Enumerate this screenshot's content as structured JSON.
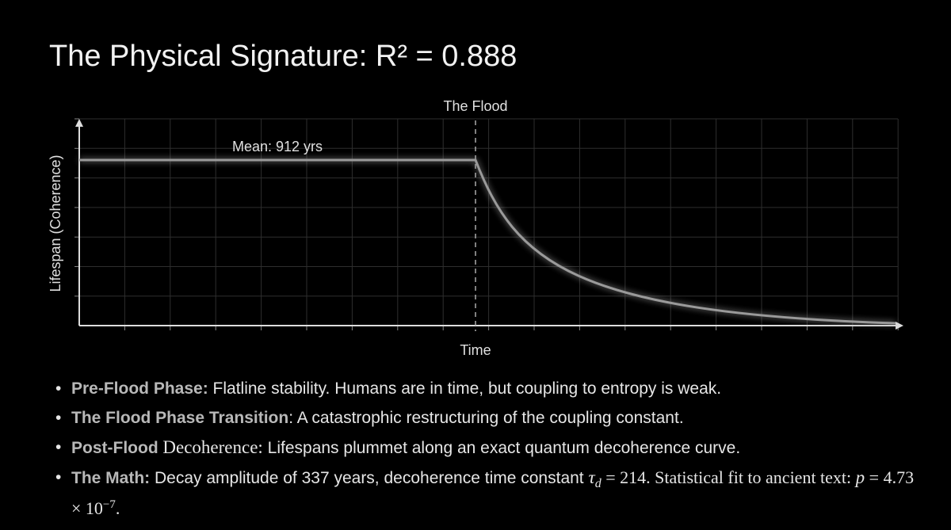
{
  "title": "The Physical Signature: R² = 0.888",
  "chart": {
    "marker_label": "The Flood",
    "mean_label": "Mean: 912 yrs",
    "y_label": "Lifespan (Coherence)",
    "x_label": "Time"
  },
  "bullets": [
    [
      "Pre-Flood Phase:",
      " Flatline stability. Humans are in time, but coupling to entropy is weak."
    ],
    [
      "The Flood Phase Transition",
      ": A catastrophic restructuring of the coupling constant."
    ],
    [
      "Post-Flood",
      " Decoherence:",
      " Lifespans plummet along an exact quantum decoherence curve."
    ],
    [
      "The Math:",
      " Decay amplitude of 337 years, decoherence time constant ",
      "τ",
      "d",
      " = 214. Statistical fit to ancient text: ",
      "p",
      " = 4.73 × 10",
      "−7",
      "."
    ]
  ]
}
